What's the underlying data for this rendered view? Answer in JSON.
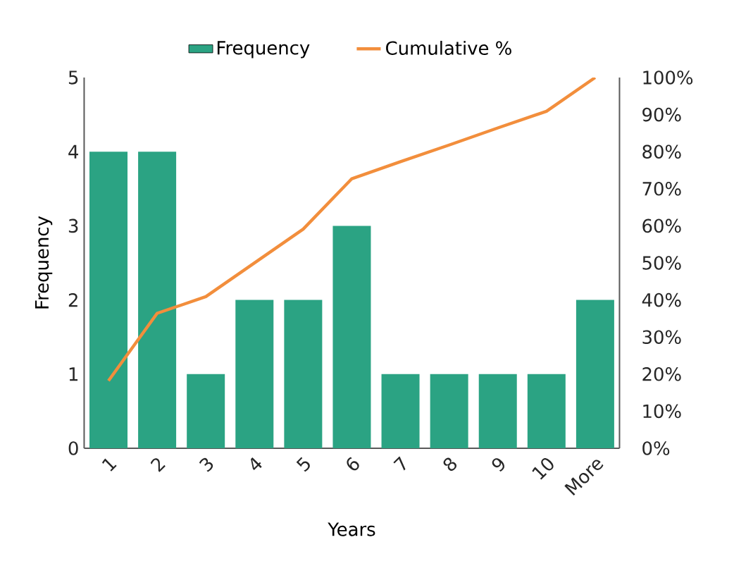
{
  "chart_data": {
    "type": "bar",
    "xlabel": "Years",
    "ylabel": "Frequency",
    "categories": [
      "1",
      "2",
      "3",
      "4",
      "5",
      "6",
      "7",
      "8",
      "9",
      "10",
      "More"
    ],
    "series": [
      {
        "name": "Frequency",
        "color": "#2ba383",
        "values": [
          4,
          4,
          1,
          2,
          2,
          3,
          1,
          1,
          1,
          1,
          2
        ]
      },
      {
        "name": "Cumulative %",
        "type": "line",
        "axis": "y2",
        "color": "#f28e3c",
        "values": [
          18.2,
          36.4,
          40.9,
          50,
          59.1,
          72.7,
          77.3,
          81.8,
          86.4,
          90.9,
          100
        ]
      }
    ],
    "ylim": [
      0,
      5
    ],
    "yticks": [
      0,
      1,
      2,
      3,
      4,
      5
    ],
    "y2lim": [
      0,
      100
    ],
    "y2ticks": [
      {
        "value": 0,
        "label": "0%"
      },
      {
        "value": 10,
        "label": "10%"
      },
      {
        "value": 20,
        "label": "20%"
      },
      {
        "value": 30,
        "label": "30%"
      },
      {
        "value": 40,
        "label": "40%"
      },
      {
        "value": 50,
        "label": "50%"
      },
      {
        "value": 60,
        "label": "60%"
      },
      {
        "value": 70,
        "label": "70%"
      },
      {
        "value": 80,
        "label": "80%"
      },
      {
        "value": 90,
        "label": "90%"
      },
      {
        "value": 100,
        "label": "100%"
      }
    ],
    "legend": "top"
  }
}
